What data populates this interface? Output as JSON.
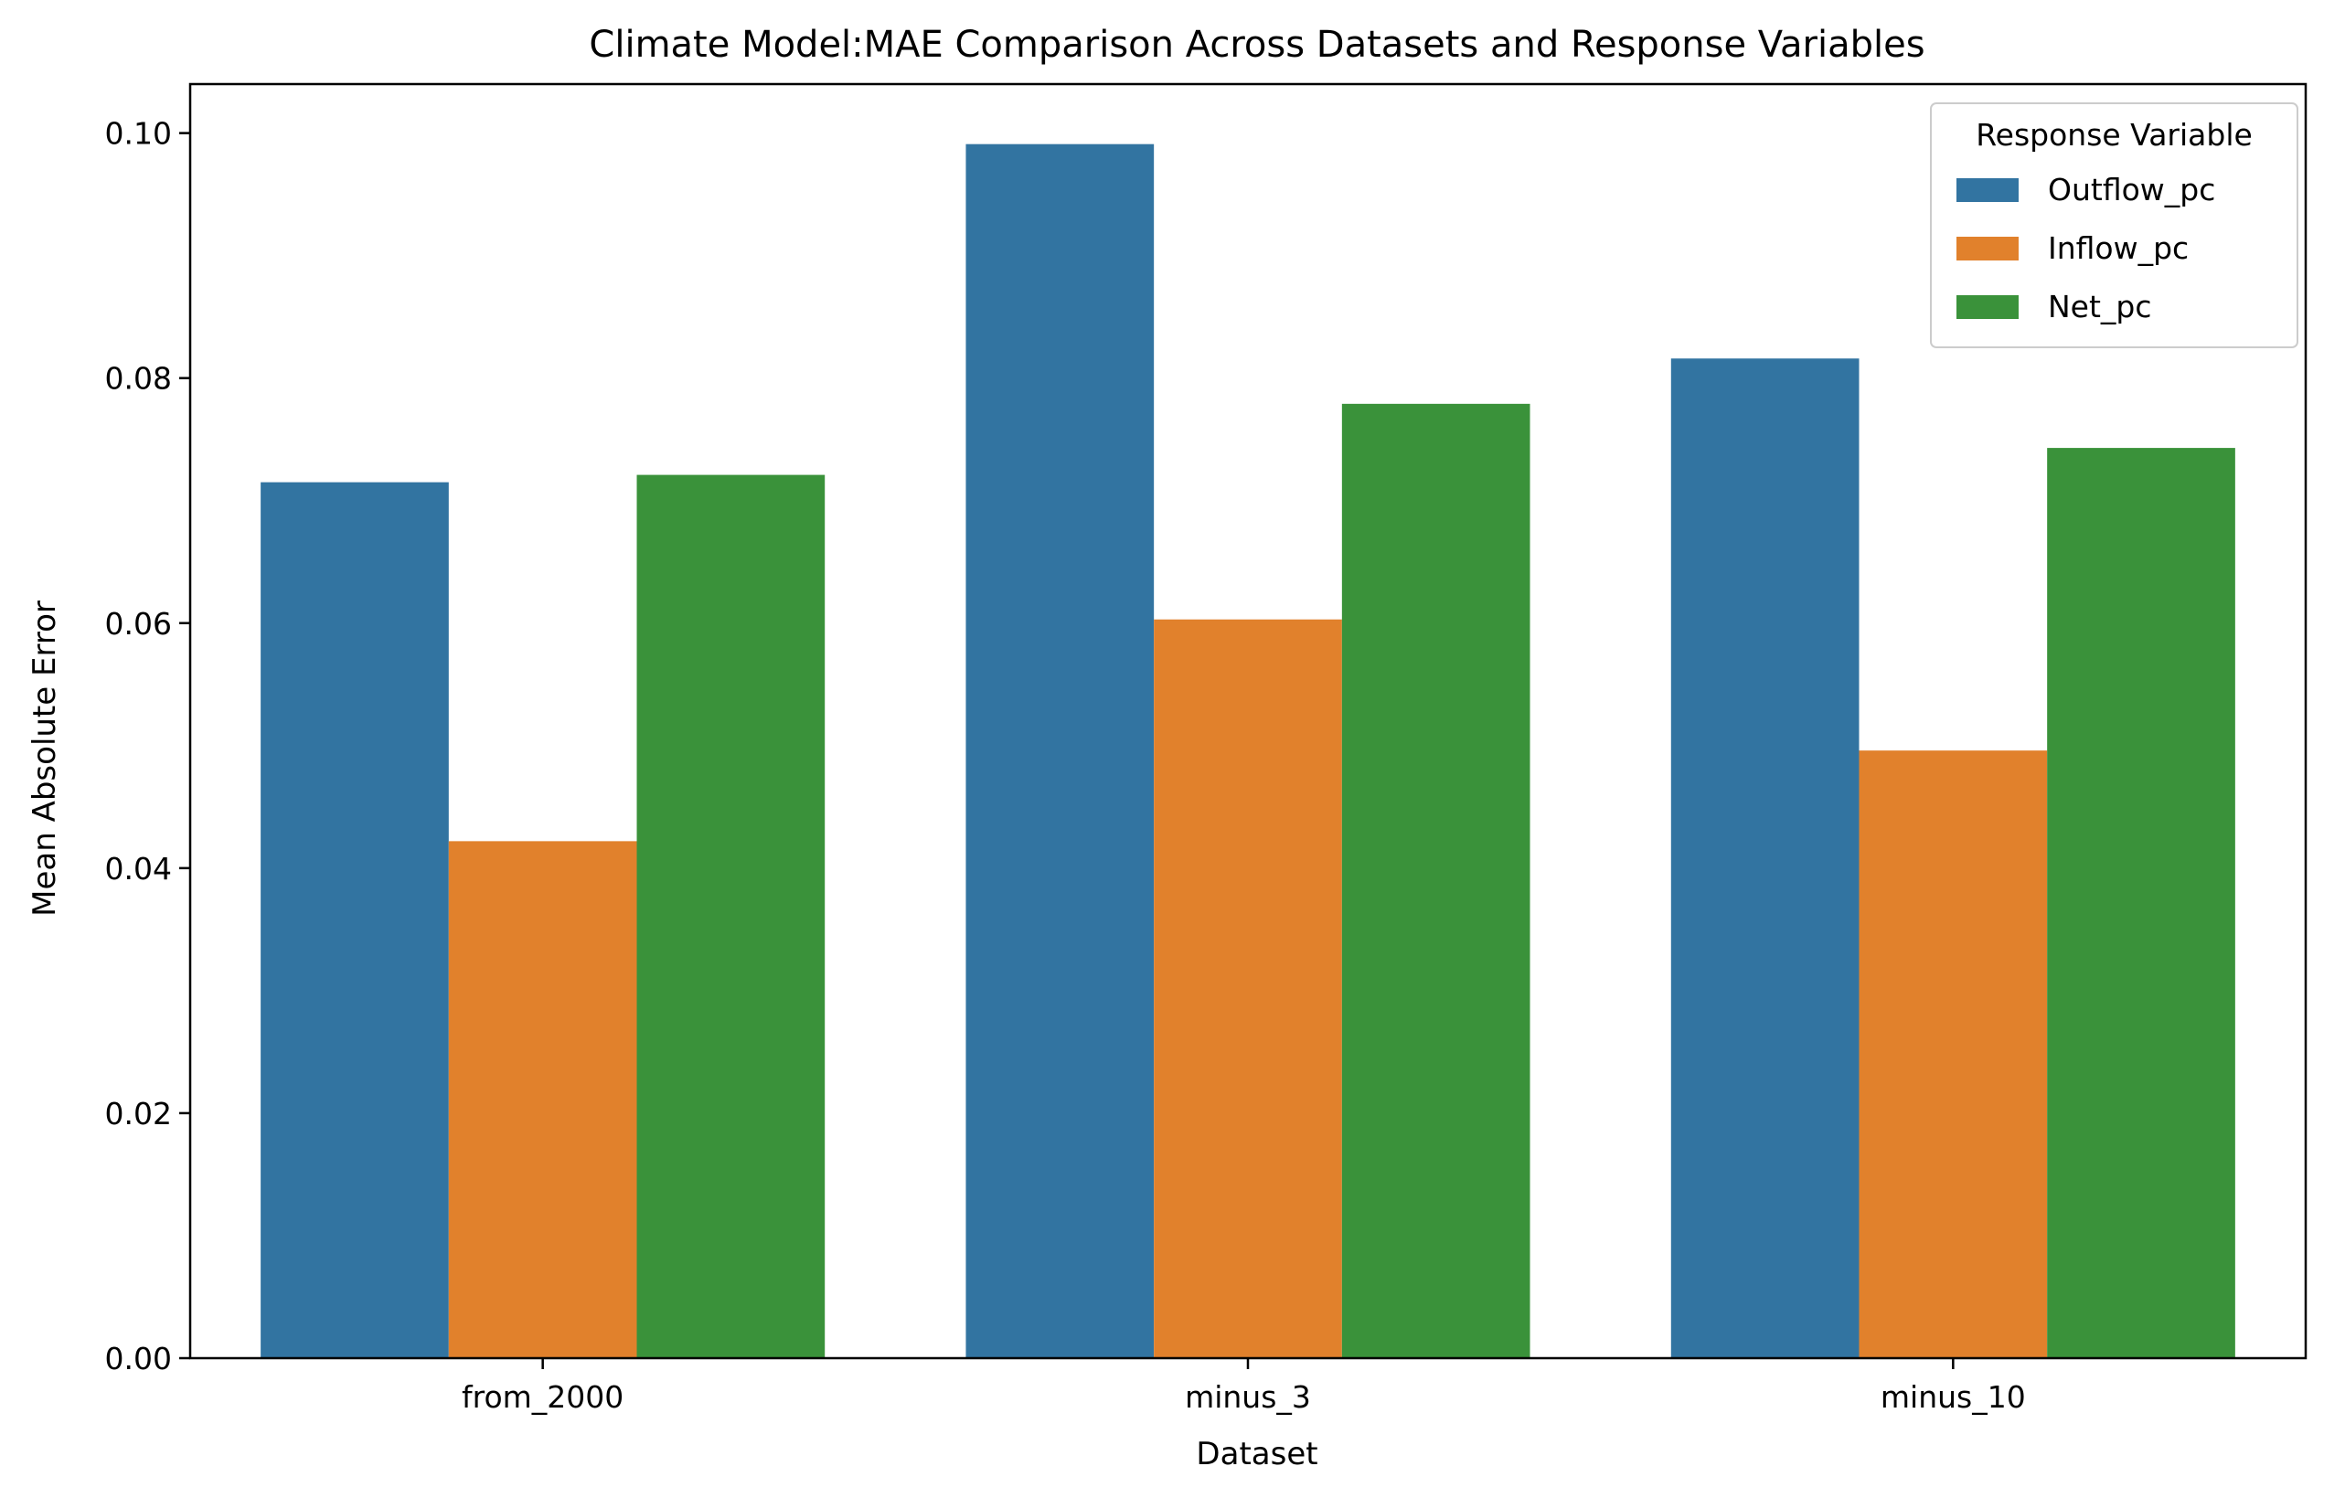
{
  "chart_data": {
    "type": "bar",
    "title": "Climate Model:MAE Comparison Across Datasets and Response Variables",
    "xlabel": "Dataset",
    "ylabel": "Mean Absolute Error",
    "categories": [
      "from_2000",
      "minus_3",
      "minus_10"
    ],
    "series": [
      {
        "name": "Outflow_pc",
        "color": "#3274a1",
        "values": [
          0.0715,
          0.0991,
          0.0816
        ]
      },
      {
        "name": "Inflow_pc",
        "color": "#e1812c",
        "values": [
          0.0422,
          0.0603,
          0.0496
        ]
      },
      {
        "name": "Net_pc",
        "color": "#3a923a",
        "values": [
          0.0721,
          0.0779,
          0.0743
        ]
      }
    ],
    "ylim": [
      0,
      0.104
    ],
    "yticks": [
      0.0,
      0.02,
      0.04,
      0.06,
      0.08,
      0.1
    ],
    "ytick_labels": [
      "0.00",
      "0.02",
      "0.04",
      "0.06",
      "0.08",
      "0.10"
    ],
    "grid": false,
    "legend": {
      "title": "Response Variable",
      "placement": "top-right"
    }
  }
}
